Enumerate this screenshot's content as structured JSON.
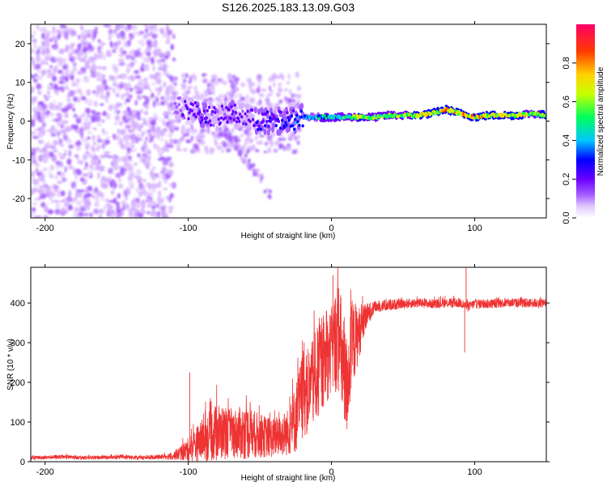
{
  "title": "S126.2025.183.13.09.G03",
  "chart_data": [
    {
      "type": "heatmap",
      "xlabel": "Height of straight line (km)",
      "ylabel": "Frequency (Hz)",
      "xlim": [
        -210,
        150
      ],
      "ylim": [
        -25,
        25
      ],
      "xticks": [
        -200,
        -100,
        0,
        100
      ],
      "yticks": [
        -20,
        -10,
        0,
        10,
        20
      ],
      "colorbar": {
        "label": "Normalized spectral amplitude",
        "range": [
          0,
          1
        ],
        "ticks": [
          "0.0",
          "0.2",
          "0.4",
          "0.6",
          "0.8"
        ]
      },
      "ridge": {
        "x": [
          -110,
          -100,
          -90,
          -80,
          -70,
          -60,
          -50,
          -40,
          -30,
          -20,
          -10,
          0,
          10,
          20,
          30,
          40,
          50,
          60,
          70,
          80,
          90,
          100,
          110,
          120,
          130,
          140,
          150
        ],
        "frequency": [
          4,
          3,
          2,
          1,
          2,
          1,
          0,
          0,
          0,
          1,
          1,
          1,
          1,
          1,
          1,
          1.5,
          1.5,
          1.5,
          2,
          3,
          2,
          1,
          1.5,
          1.5,
          1.5,
          2,
          1.5
        ],
        "amplitude": [
          0.2,
          0.3,
          0.35,
          0.3,
          0.35,
          0.3,
          0.35,
          0.4,
          0.4,
          0.5,
          0.55,
          0.6,
          0.65,
          0.8,
          0.7,
          0.7,
          0.75,
          0.8,
          0.8,
          0.9,
          0.85,
          0.9,
          0.8,
          0.85,
          0.8,
          0.75,
          0.8
        ]
      }
    },
    {
      "type": "line",
      "xlabel": "Height of straight line (km)",
      "ylabel": "SNR (10 * v/v)",
      "xlim": [
        -210,
        150
      ],
      "ylim": [
        0,
        490
      ],
      "xticks": [
        -200,
        -100,
        0,
        100
      ],
      "yticks": [
        0,
        100,
        200,
        300,
        400
      ],
      "color": "#ee3333",
      "series": [
        {
          "x": [
            -210,
            -190,
            -170,
            -150,
            -130,
            -120,
            -110,
            -100,
            -90,
            -80,
            -70,
            -60,
            -50,
            -40,
            -30,
            -25,
            -20,
            -15,
            -10,
            -5,
            0,
            5,
            10,
            15,
            20,
            25,
            30,
            40,
            50,
            60,
            70,
            80,
            90,
            95,
            100,
            110,
            120,
            130,
            140,
            150
          ],
          "values": [
            10,
            12,
            10,
            11,
            10,
            12,
            15,
            30,
            55,
            75,
            70,
            75,
            65,
            60,
            75,
            110,
            170,
            180,
            220,
            250,
            280,
            320,
            180,
            300,
            330,
            370,
            390,
            395,
            398,
            400,
            398,
            400,
            400,
            390,
            398,
            398,
            400,
            400,
            400,
            400
          ],
          "spread": [
            5,
            5,
            5,
            5,
            5,
            6,
            10,
            30,
            55,
            75,
            60,
            70,
            55,
            50,
            60,
            90,
            110,
            110,
            120,
            110,
            110,
            150,
            140,
            110,
            60,
            30,
            15,
            15,
            12,
            12,
            12,
            12,
            12,
            12,
            12,
            12,
            12,
            12,
            12,
            12
          ]
        }
      ],
      "annotations": [
        {
          "x": 1,
          "value": 470
        },
        {
          "x": 9,
          "value": 108
        },
        {
          "x": 94,
          "value": 490
        },
        {
          "x": 93,
          "value": 275
        },
        {
          "x": -99,
          "value": 225
        }
      ]
    }
  ],
  "colors": {
    "colormap": [
      "#ffffff",
      "#d6b2ff",
      "#a45cff",
      "#6a00ff",
      "#0000ff",
      "#00c8ff",
      "#00ff5a",
      "#c8ff00",
      "#ffd200",
      "#ff3a00",
      "#ff0066"
    ],
    "snr_line": "#ee3333"
  }
}
